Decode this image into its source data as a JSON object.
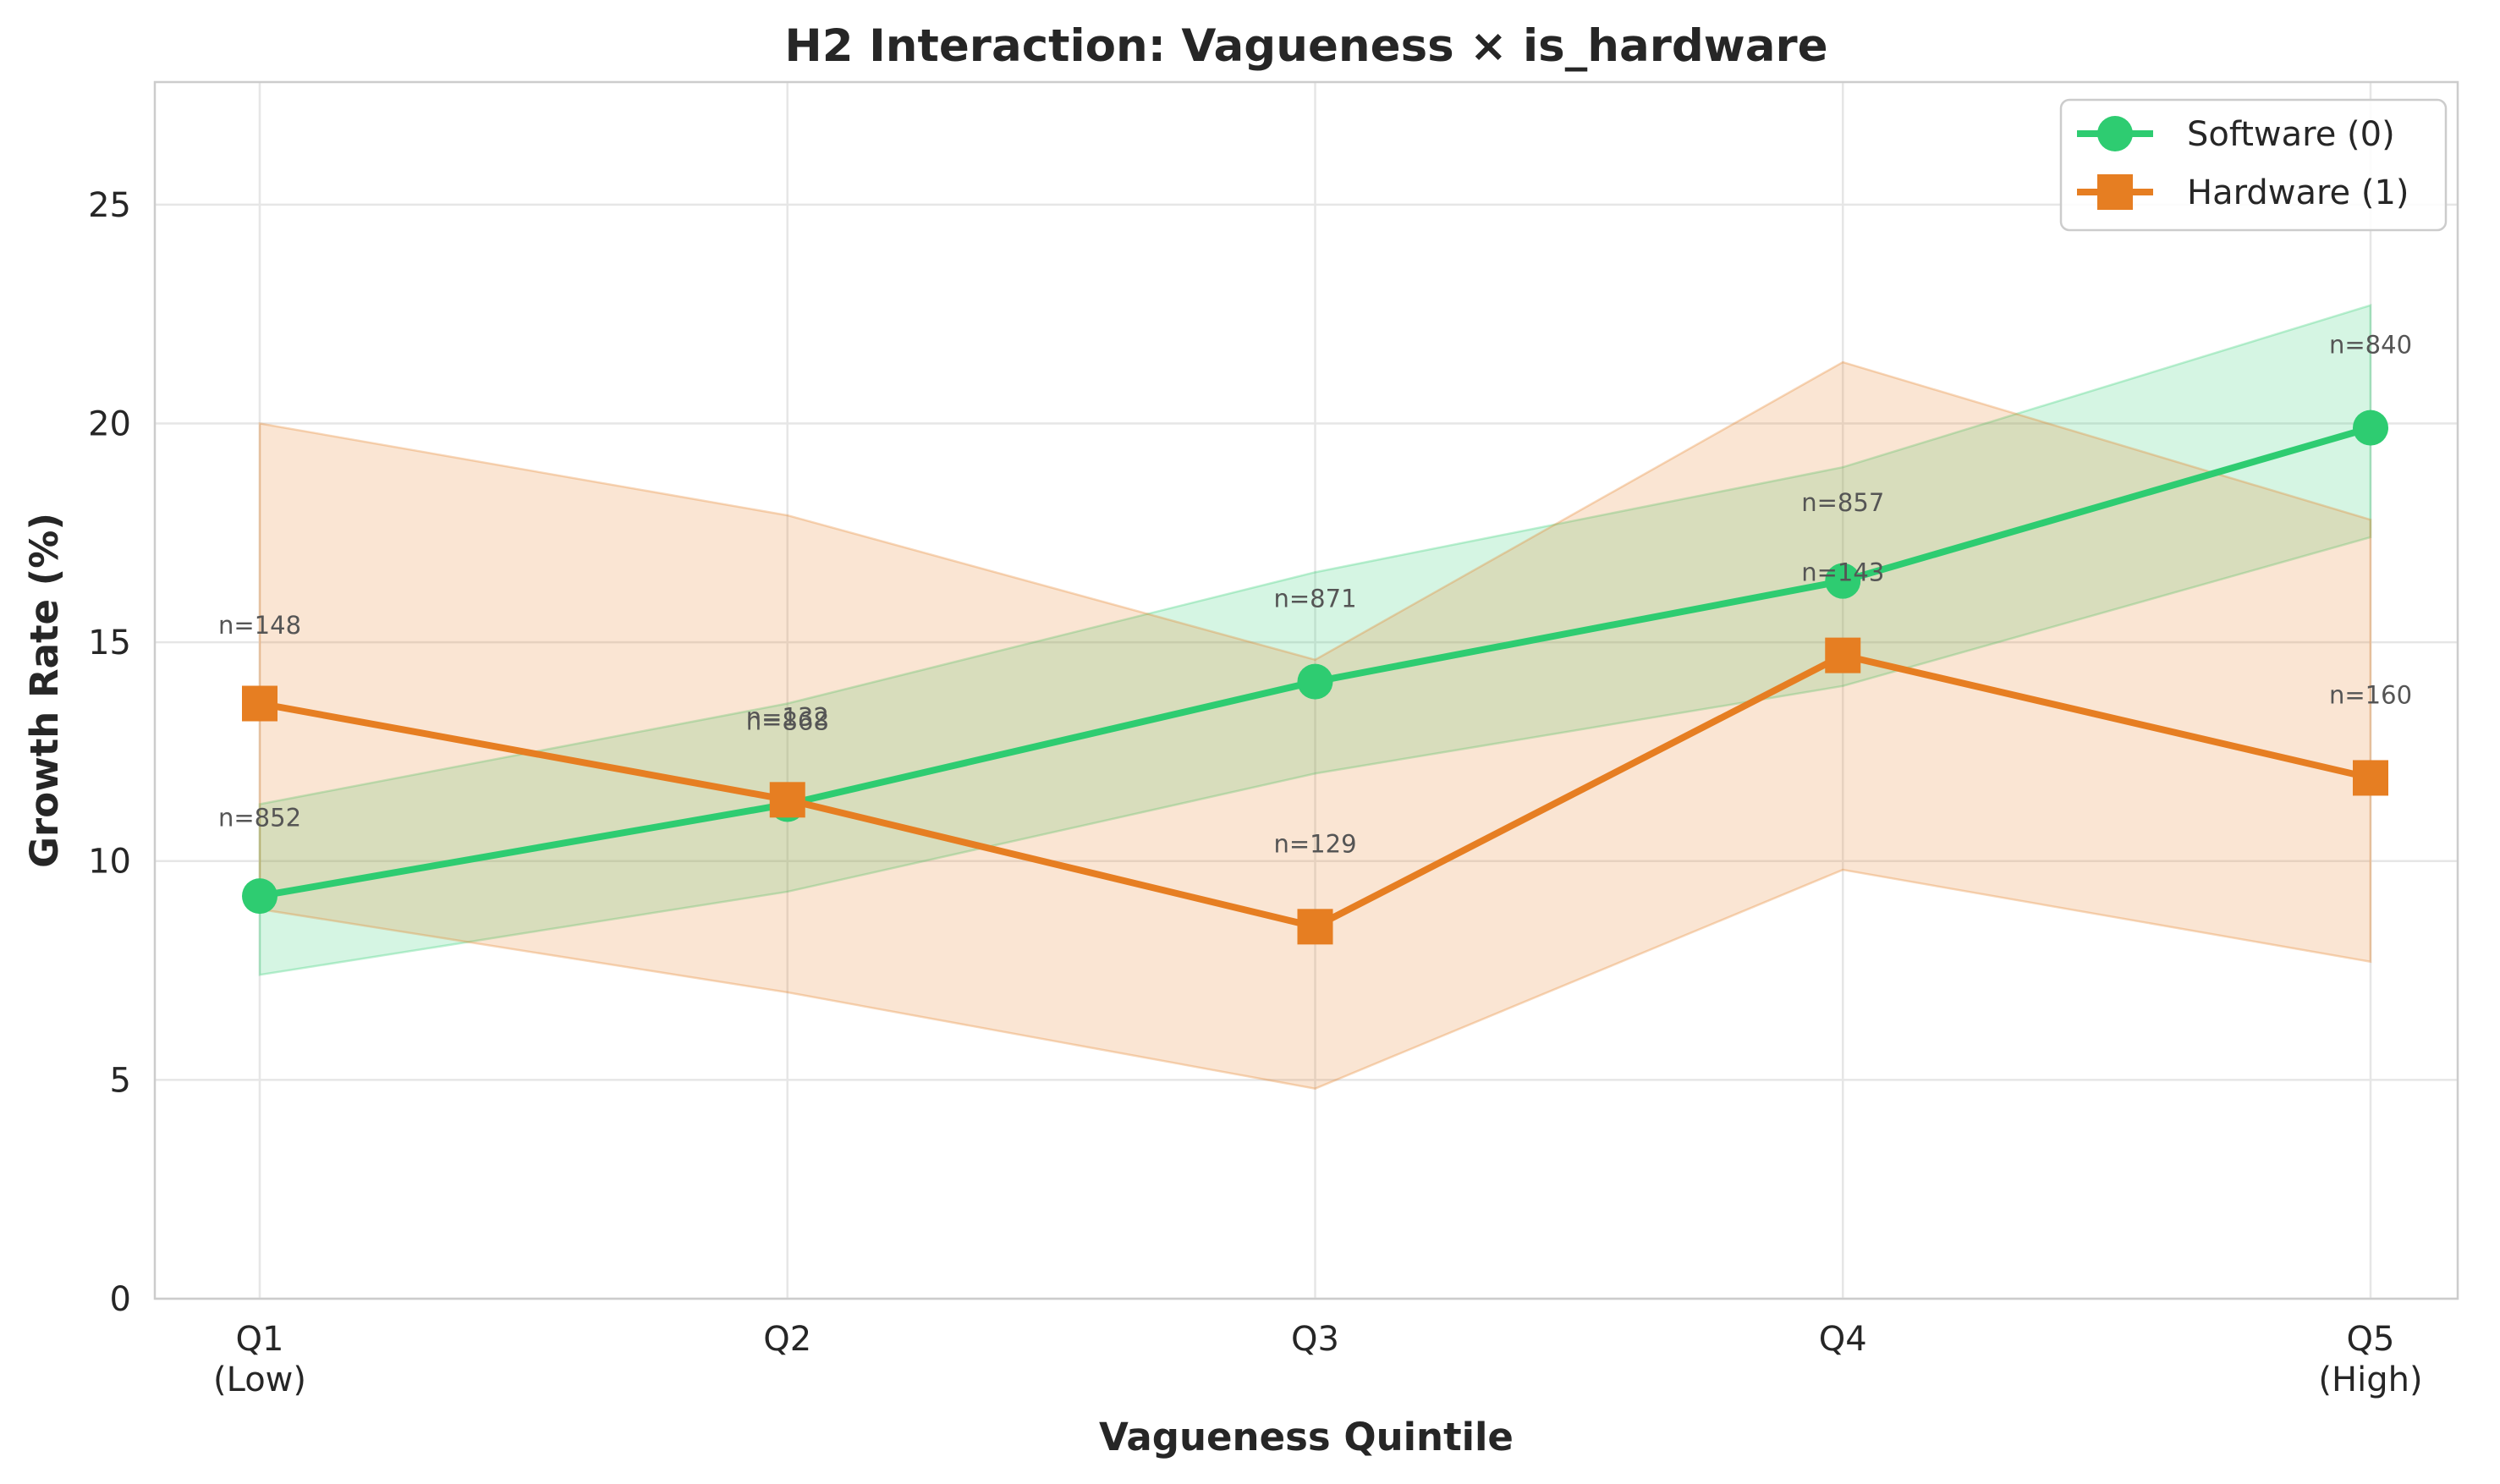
{
  "chart_data": {
    "type": "line",
    "title": "H2 Interaction: Vagueness × is_hardware",
    "xlabel": "Vagueness Quintile",
    "ylabel": "Growth Rate (%)",
    "categories": [
      [
        "Q1",
        "(Low)"
      ],
      [
        "Q2"
      ],
      [
        "Q3"
      ],
      [
        "Q4"
      ],
      [
        "Q5",
        "(High)"
      ]
    ],
    "ylim": [
      0,
      27.8
    ],
    "yticks": [
      0,
      5,
      10,
      15,
      20,
      25
    ],
    "grid": true,
    "legend_position": "top-right",
    "series": [
      {
        "name": "Software (0)",
        "color": "#2ecc71",
        "marker": "circle",
        "values": [
          9.2,
          11.3,
          14.1,
          16.4,
          19.9
        ],
        "ci_lower": [
          7.4,
          9.3,
          12.0,
          14.0,
          17.4
        ],
        "ci_upper": [
          11.3,
          13.6,
          16.6,
          19.0,
          22.7
        ],
        "n_labels": [
          "n=852",
          "n=868",
          "n=871",
          "n=857",
          "n=840"
        ],
        "n_label_y": [
          10.8,
          13.0,
          15.8,
          18.0,
          21.6
        ]
      },
      {
        "name": "Hardware (1)",
        "color": "#e67e22",
        "marker": "square",
        "values": [
          13.6,
          11.4,
          8.5,
          14.7,
          11.9
        ],
        "ci_lower": [
          8.9,
          7.0,
          4.8,
          9.8,
          7.7
        ],
        "ci_upper": [
          20.0,
          17.9,
          14.6,
          21.4,
          17.8
        ],
        "n_labels": [
          "n=148",
          "n=132",
          "n=129",
          "n=143",
          "n=160"
        ],
        "n_label_y": [
          15.2,
          13.1,
          10.2,
          16.4,
          13.6
        ]
      }
    ]
  }
}
